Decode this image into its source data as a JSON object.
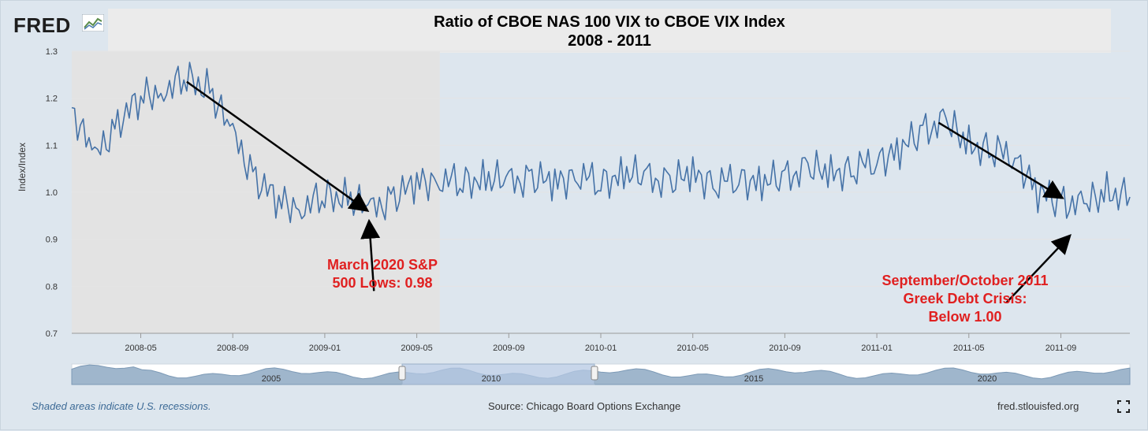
{
  "logo": {
    "text": "FRED",
    "icon": "line-graph-icon"
  },
  "title": {
    "line1": "Ratio of CBOE NAS 100 VIX to CBOE VIX Index",
    "line2": "2008 - 2011"
  },
  "colors": {
    "series": "#4572a7",
    "recession": "#e3e3e3",
    "annotation": "#e02020",
    "navigator_fill": "#9fb6cc",
    "navigator_window": "#b5c8e3"
  },
  "chart_data": {
    "type": "line",
    "title": "Ratio of CBOE NAS 100 VIX to CBOE VIX Index",
    "subtitle": "2008 - 2011",
    "ylabel": "Index/Index",
    "ylim": [
      0.7,
      1.3
    ],
    "y_ticks": [
      "1.3",
      "1.2",
      "1.1",
      "1.0",
      "0.9",
      "0.8",
      "0.7"
    ],
    "x_range": [
      "2008-02",
      "2011-12"
    ],
    "x_ticks": [
      "2008-05",
      "2008-09",
      "2009-01",
      "2009-05",
      "2009-09",
      "2010-01",
      "2010-05",
      "2010-09",
      "2011-01",
      "2011-05",
      "2011-09"
    ],
    "recession": {
      "start": "2008-02",
      "end": "2009-06"
    },
    "series": [
      {
        "name": "Ratio of CBOE NAS 100 VIX to CBOE VIX Index",
        "x": [
          "2008-02",
          "2008-03",
          "2008-04",
          "2008-05",
          "2008-06",
          "2008-07",
          "2008-08",
          "2008-09",
          "2008-10",
          "2008-11",
          "2008-12",
          "2009-01",
          "2009-02",
          "2009-03",
          "2009-04",
          "2009-05",
          "2009-06",
          "2009-07",
          "2009-08",
          "2009-09",
          "2009-10",
          "2009-11",
          "2009-12",
          "2010-01",
          "2010-02",
          "2010-03",
          "2010-04",
          "2010-05",
          "2010-06",
          "2010-07",
          "2010-08",
          "2010-09",
          "2010-10",
          "2010-11",
          "2010-12",
          "2011-01",
          "2011-02",
          "2011-03",
          "2011-04",
          "2011-05",
          "2011-06",
          "2011-07",
          "2011-08",
          "2011-09",
          "2011-10",
          "2011-11",
          "2011-12"
        ],
        "values": [
          1.18,
          1.07,
          1.15,
          1.2,
          1.22,
          1.24,
          1.22,
          1.12,
          1.03,
          0.98,
          0.97,
          0.99,
          0.99,
          0.96,
          0.99,
          1.02,
          1.03,
          1.02,
          1.03,
          1.02,
          1.03,
          1.02,
          1.04,
          1.02,
          1.04,
          1.03,
          1.02,
          1.04,
          1.02,
          1.03,
          1.02,
          1.03,
          1.05,
          1.04,
          1.05,
          1.07,
          1.09,
          1.13,
          1.15,
          1.1,
          1.09,
          1.08,
          1.0,
          0.98,
          0.97,
          1.0,
          0.99
        ]
      }
    ],
    "annotations": [
      {
        "text_line1": "March 2020 S&P",
        "text_line2": "500 Lows: 0.98",
        "x": "2009-03",
        "y": 0.96
      },
      {
        "text_line1": "September/October 2011",
        "text_line2": "Greek Debt Crisis:",
        "text_line3": "Below 1.00",
        "x": "2011-08",
        "y": 0.98
      }
    ],
    "navigator_labels": [
      "2005",
      "2010",
      "2015",
      "2020"
    ]
  },
  "footer": {
    "recession_note": "Shaded areas indicate U.S. recessions.",
    "source": "Source: Chicago Board Options Exchange",
    "site": "fred.stlouisfed.org",
    "expand_icon": "expand-icon"
  }
}
